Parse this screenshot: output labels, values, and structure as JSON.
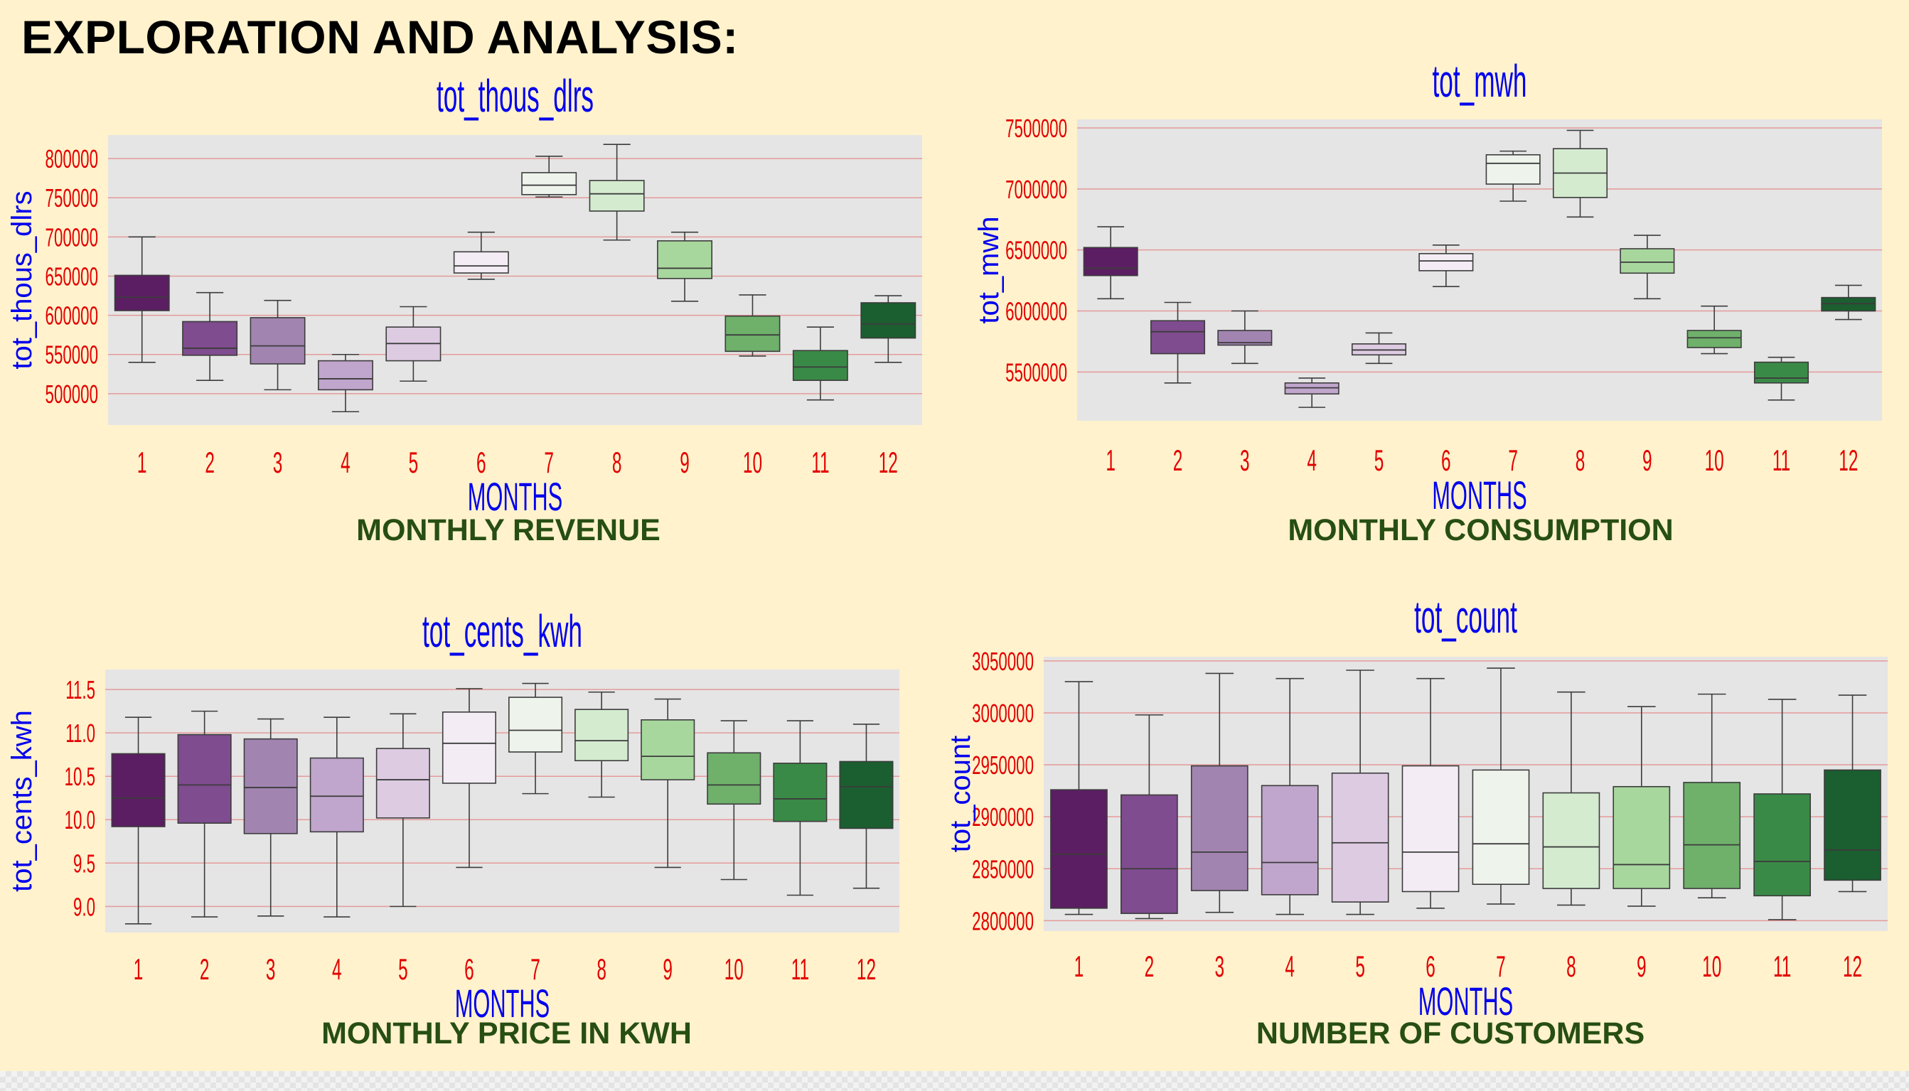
{
  "page": {
    "title": "EXPLORATION AND ANALYSIS:"
  },
  "palette": [
    "#5b1e62",
    "#7f4c8f",
    "#a184b0",
    "#c0a5cc",
    "#ddcbe2",
    "#f3ecf4",
    "#eef4ec",
    "#d4ebcf",
    "#a8d79e",
    "#6fb06b",
    "#3a8a47",
    "#1b5e30"
  ],
  "chart_data": [
    {
      "type": "box",
      "title": "tot_thous_dlrs",
      "xlabel": "MONTHS",
      "ylabel": "tot_thous_dlrs",
      "caption": "MONTHLY REVENUE",
      "categories": [
        "1",
        "2",
        "3",
        "4",
        "5",
        "6",
        "7",
        "8",
        "9",
        "10",
        "11",
        "12"
      ],
      "yticks": [
        500000,
        550000,
        600000,
        650000,
        700000,
        750000,
        800000
      ],
      "ytick_labels": [
        "500000",
        "550000",
        "600000",
        "650000",
        "700000",
        "750000",
        "800000"
      ],
      "ylim": [
        460000,
        830000
      ],
      "grid": true,
      "boxes": [
        {
          "min": 540000,
          "q1": 606000,
          "median": 623000,
          "q3": 651000,
          "max": 700000
        },
        {
          "min": 517000,
          "q1": 549000,
          "median": 558000,
          "q3": 592000,
          "max": 629000
        },
        {
          "min": 505000,
          "q1": 538000,
          "median": 561000,
          "q3": 597000,
          "max": 619000
        },
        {
          "min": 477000,
          "q1": 505000,
          "median": 519000,
          "q3": 542000,
          "max": 550000
        },
        {
          "min": 516000,
          "q1": 542000,
          "median": 564000,
          "q3": 585000,
          "max": 611000
        },
        {
          "min": 646000,
          "q1": 654000,
          "median": 663000,
          "q3": 681000,
          "max": 706000
        },
        {
          "min": 751000,
          "q1": 754000,
          "median": 766000,
          "q3": 782000,
          "max": 803000
        },
        {
          "min": 696000,
          "q1": 733000,
          "median": 755000,
          "q3": 772000,
          "max": 818000
        },
        {
          "min": 618000,
          "q1": 647000,
          "median": 660000,
          "q3": 695000,
          "max": 706000
        },
        {
          "min": 548000,
          "q1": 554000,
          "median": 575000,
          "q3": 599000,
          "max": 626000
        },
        {
          "min": 492000,
          "q1": 517000,
          "median": 534000,
          "q3": 555000,
          "max": 585000
        },
        {
          "min": 540000,
          "q1": 571000,
          "median": 589000,
          "q3": 616000,
          "max": 625000
        }
      ]
    },
    {
      "type": "box",
      "title": "tot_mwh",
      "xlabel": "MONTHS",
      "ylabel": "tot_mwh",
      "caption": "MONTHLY CONSUMPTION",
      "categories": [
        "1",
        "2",
        "3",
        "4",
        "5",
        "6",
        "7",
        "8",
        "9",
        "10",
        "11",
        "12"
      ],
      "yticks": [
        5500000,
        6000000,
        6500000,
        7000000,
        7500000
      ],
      "ytick_labels": [
        "5500000",
        "6000000",
        "6500000",
        "7000000",
        "7500000"
      ],
      "ylim": [
        5100000,
        7570000
      ],
      "grid": true,
      "boxes": [
        {
          "min": 6100000,
          "q1": 6290000,
          "median": 6350000,
          "q3": 6520000,
          "max": 6690000
        },
        {
          "min": 5410000,
          "q1": 5650000,
          "median": 5830000,
          "q3": 5920000,
          "max": 6070000
        },
        {
          "min": 5570000,
          "q1": 5720000,
          "median": 5740000,
          "q3": 5840000,
          "max": 6000000
        },
        {
          "min": 5210000,
          "q1": 5320000,
          "median": 5370000,
          "q3": 5410000,
          "max": 5450000
        },
        {
          "min": 5570000,
          "q1": 5640000,
          "median": 5680000,
          "q3": 5730000,
          "max": 5820000
        },
        {
          "min": 6200000,
          "q1": 6330000,
          "median": 6410000,
          "q3": 6470000,
          "max": 6540000
        },
        {
          "min": 6900000,
          "q1": 7040000,
          "median": 7210000,
          "q3": 7280000,
          "max": 7310000
        },
        {
          "min": 6770000,
          "q1": 6930000,
          "median": 7130000,
          "q3": 7330000,
          "max": 7480000
        },
        {
          "min": 6100000,
          "q1": 6310000,
          "median": 6400000,
          "q3": 6510000,
          "max": 6620000
        },
        {
          "min": 5650000,
          "q1": 5700000,
          "median": 5780000,
          "q3": 5840000,
          "max": 6040000
        },
        {
          "min": 5270000,
          "q1": 5410000,
          "median": 5450000,
          "q3": 5580000,
          "max": 5620000
        },
        {
          "min": 5930000,
          "q1": 6000000,
          "median": 6060000,
          "q3": 6110000,
          "max": 6210000
        }
      ]
    },
    {
      "type": "box",
      "title": "tot_cents_kwh",
      "xlabel": "MONTHS",
      "ylabel": "tot_cents_kwh",
      "caption": "MONTHLY PRICE IN KWH",
      "categories": [
        "1",
        "2",
        "3",
        "4",
        "5",
        "6",
        "7",
        "8",
        "9",
        "10",
        "11",
        "12"
      ],
      "yticks": [
        9.0,
        9.5,
        10.0,
        10.5,
        11.0,
        11.5
      ],
      "ytick_labels": [
        "9.0",
        "9.5",
        "10.0",
        "10.5",
        "11.0",
        "11.5"
      ],
      "ylim": [
        8.7,
        11.73
      ],
      "grid": true,
      "boxes": [
        {
          "min": 8.8,
          "q1": 9.92,
          "median": 10.25,
          "q3": 10.76,
          "max": 11.18
        },
        {
          "min": 8.88,
          "q1": 9.96,
          "median": 10.4,
          "q3": 10.98,
          "max": 11.25
        },
        {
          "min": 8.89,
          "q1": 9.84,
          "median": 10.37,
          "q3": 10.93,
          "max": 11.16
        },
        {
          "min": 8.88,
          "q1": 9.86,
          "median": 10.27,
          "q3": 10.71,
          "max": 11.18
        },
        {
          "min": 9.0,
          "q1": 10.02,
          "median": 10.46,
          "q3": 10.82,
          "max": 11.22
        },
        {
          "min": 9.45,
          "q1": 10.42,
          "median": 10.88,
          "q3": 11.24,
          "max": 11.51
        },
        {
          "min": 10.3,
          "q1": 10.78,
          "median": 11.03,
          "q3": 11.41,
          "max": 11.57
        },
        {
          "min": 10.26,
          "q1": 10.68,
          "median": 10.91,
          "q3": 11.27,
          "max": 11.47
        },
        {
          "min": 9.45,
          "q1": 10.46,
          "median": 10.73,
          "q3": 11.15,
          "max": 11.39
        },
        {
          "min": 9.31,
          "q1": 10.18,
          "median": 10.4,
          "q3": 10.77,
          "max": 11.14
        },
        {
          "min": 9.13,
          "q1": 9.98,
          "median": 10.24,
          "q3": 10.65,
          "max": 11.14
        },
        {
          "min": 9.21,
          "q1": 9.9,
          "median": 10.38,
          "q3": 10.67,
          "max": 11.1
        }
      ]
    },
    {
      "type": "box",
      "title": "tot_count",
      "xlabel": "MONTHS",
      "ylabel": "tot_count",
      "caption": "NUMBER OF CUSTOMERS",
      "categories": [
        "1",
        "2",
        "3",
        "4",
        "5",
        "6",
        "7",
        "8",
        "9",
        "10",
        "11",
        "12"
      ],
      "yticks": [
        2800000,
        2850000,
        2900000,
        2950000,
        3000000,
        3050000
      ],
      "ytick_labels": [
        "2800000",
        "2850000",
        "2900000",
        "2950000",
        "3000000",
        "3050000"
      ],
      "ylim": [
        2790000,
        3054000
      ],
      "grid": true,
      "boxes": [
        {
          "min": 2806000,
          "q1": 2812000,
          "median": 2864000,
          "q3": 2926000,
          "max": 3030000
        },
        {
          "min": 2802000,
          "q1": 2807000,
          "median": 2850000,
          "q3": 2921000,
          "max": 2998000
        },
        {
          "min": 2808000,
          "q1": 2829000,
          "median": 2866000,
          "q3": 2949000,
          "max": 3038000
        },
        {
          "min": 2806000,
          "q1": 2825000,
          "median": 2856000,
          "q3": 2930000,
          "max": 3033000
        },
        {
          "min": 2806000,
          "q1": 2818000,
          "median": 2875000,
          "q3": 2942000,
          "max": 3041000
        },
        {
          "min": 2812000,
          "q1": 2828000,
          "median": 2866000,
          "q3": 2949000,
          "max": 3033000
        },
        {
          "min": 2816000,
          "q1": 2835000,
          "median": 2874000,
          "q3": 2945000,
          "max": 3043000
        },
        {
          "min": 2815000,
          "q1": 2831000,
          "median": 2871000,
          "q3": 2923000,
          "max": 3020000
        },
        {
          "min": 2814000,
          "q1": 2831000,
          "median": 2854000,
          "q3": 2929000,
          "max": 3006000
        },
        {
          "min": 2822000,
          "q1": 2831000,
          "median": 2873000,
          "q3": 2933000,
          "max": 3018000
        },
        {
          "min": 2801000,
          "q1": 2824000,
          "median": 2857000,
          "q3": 2922000,
          "max": 3013000
        },
        {
          "min": 2828000,
          "q1": 2839000,
          "median": 2868000,
          "q3": 2945000,
          "max": 3017000
        }
      ]
    }
  ]
}
